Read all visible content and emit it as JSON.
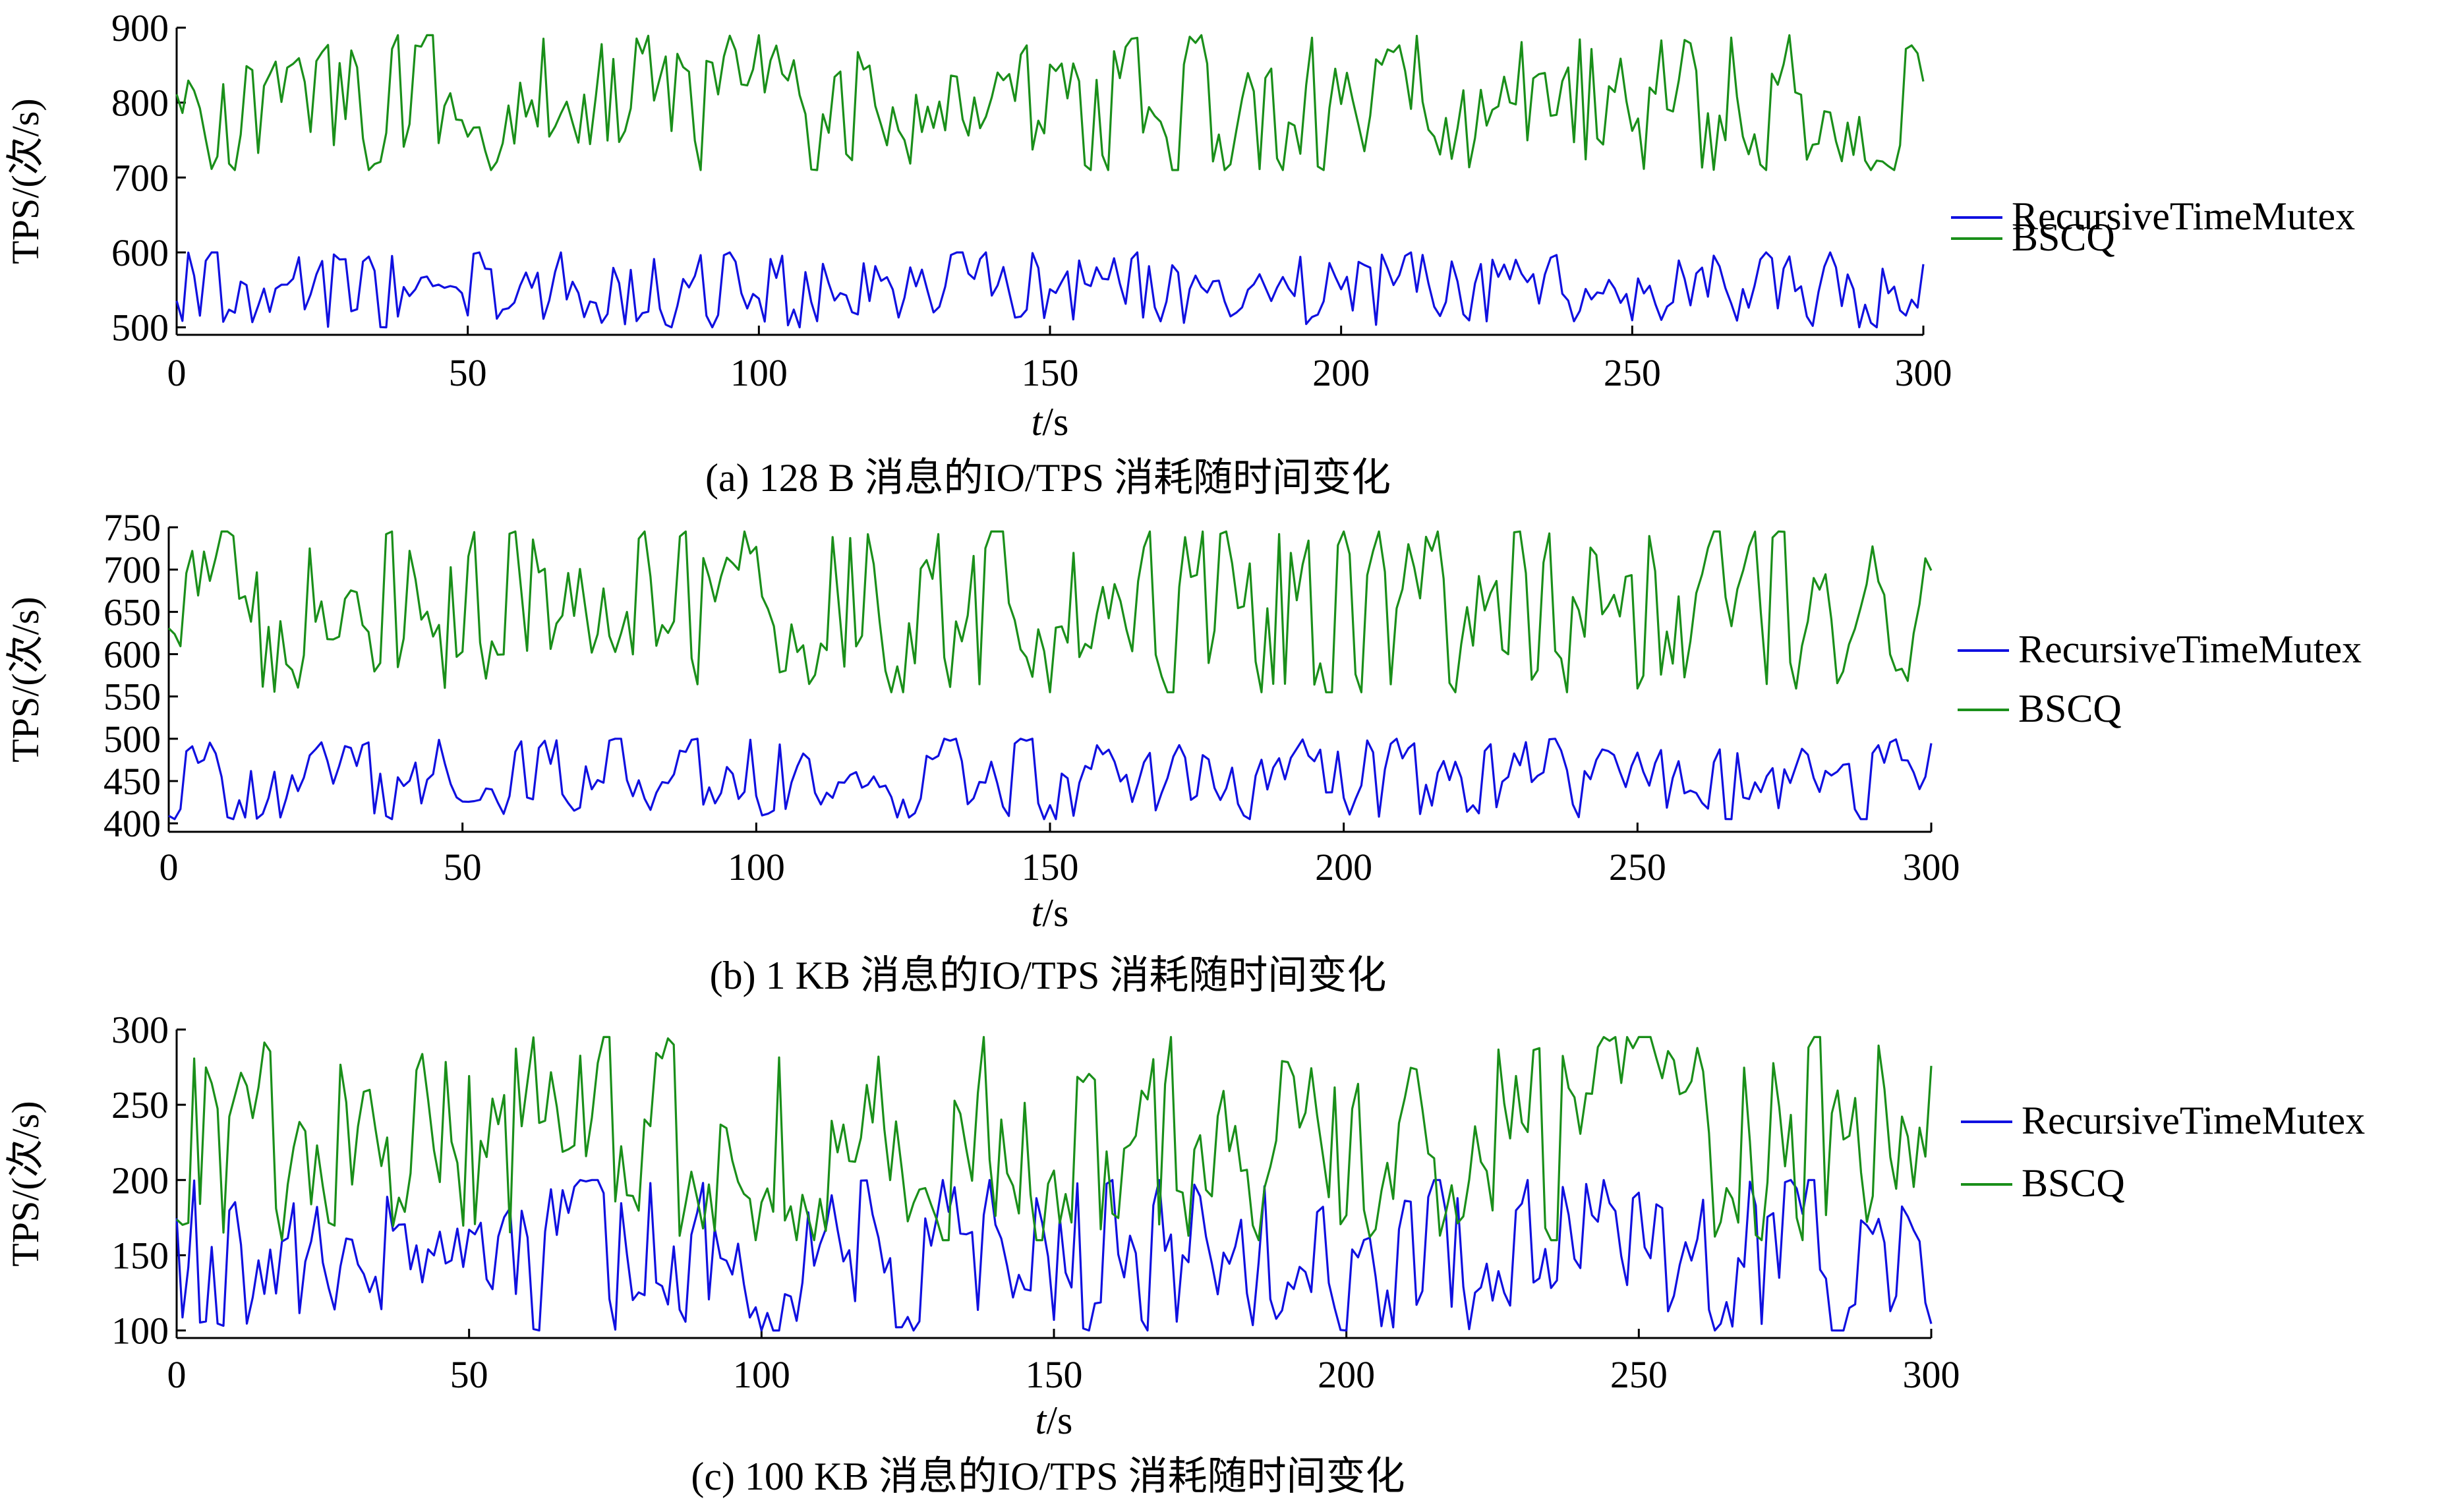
{
  "colors": {
    "RecursiveTimeMutex": "#1010e0",
    "BSCQ": "#1a8f1a",
    "axis": "#000000"
  },
  "chart_data": [
    {
      "type": "line",
      "caption": "(a) 128 B 消息的IO/TPS 消耗随时间变化",
      "ylabel": "TPS/(次/s)",
      "xlabel_var": "t",
      "xlabel_unit": "/s",
      "xlim": [
        0,
        300
      ],
      "ylim": [
        490,
        900
      ],
      "xticks": [
        "0",
        "50",
        "100",
        "150",
        "200",
        "250",
        "300"
      ],
      "yticks": [
        "500",
        "600",
        "700",
        "800",
        "900"
      ],
      "legend": [
        "RecursiveTimeMutex",
        "BSCQ"
      ],
      "legend_position": "right",
      "series": [
        {
          "name": "RecursiveTimeMutex",
          "range": [
            500,
            600
          ],
          "mean": 545
        },
        {
          "name": "BSCQ",
          "range": [
            710,
            890
          ],
          "mean": 790
        }
      ]
    },
    {
      "type": "line",
      "caption": "(b) 1 KB 消息的IO/TPS 消耗随时间变化",
      "ylabel": "TPS/(次/s)",
      "xlabel_var": "t",
      "xlabel_unit": "/s",
      "xlim": [
        0,
        300
      ],
      "ylim": [
        390,
        750
      ],
      "xticks": [
        "0",
        "50",
        "100",
        "150",
        "200",
        "250",
        "300"
      ],
      "yticks": [
        "400",
        "450",
        "500",
        "550",
        "600",
        "650",
        "700",
        "750"
      ],
      "legend": [
        "RecursiveTimeMutex",
        "BSCQ"
      ],
      "legend_position": "right",
      "series": [
        {
          "name": "RecursiveTimeMutex",
          "range": [
            405,
            500
          ],
          "mean": 450
        },
        {
          "name": "BSCQ",
          "range": [
            555,
            745
          ],
          "mean": 650
        }
      ]
    },
    {
      "type": "line",
      "caption": "(c) 100 KB 消息的IO/TPS 消耗随时间变化",
      "ylabel": "TPS/(次/s)",
      "xlabel_var": "t",
      "xlabel_unit": "/s",
      "xlim": [
        0,
        300
      ],
      "ylim": [
        95,
        300
      ],
      "xticks": [
        "0",
        "50",
        "100",
        "150",
        "200",
        "250",
        "300"
      ],
      "yticks": [
        "100",
        "150",
        "200",
        "250",
        "300"
      ],
      "legend": [
        "RecursiveTimeMutex",
        "BSCQ"
      ],
      "legend_position": "right",
      "series": [
        {
          "name": "RecursiveTimeMutex",
          "range": [
            100,
            200
          ],
          "mean": 150
        },
        {
          "name": "BSCQ",
          "range": [
            160,
            295
          ],
          "mean": 225
        }
      ]
    }
  ]
}
